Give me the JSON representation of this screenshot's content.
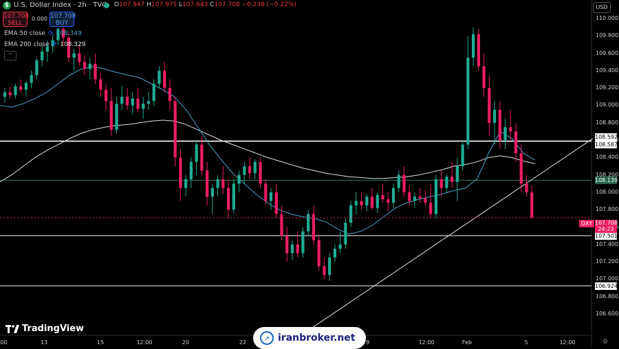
{
  "header": {
    "symbol_title": "U.S. Dollar Index · 2h · TVC",
    "badge": "$",
    "ohlc": {
      "o_label": "O",
      "o": "107.947",
      "h_label": "H",
      "h": "107.975",
      "l_label": "L",
      "l": "107.643",
      "c_label": "C",
      "c": "107.708",
      "change": "−0.238 (−0.22%)"
    }
  },
  "trade": {
    "sell_price": "107.708",
    "sell_label": "SELL",
    "spread": "0.000",
    "buy_price": "107.708",
    "buy_label": "BUY"
  },
  "indicators": [
    {
      "name": "EMA 50 close",
      "value": "108.349",
      "color": "#4aa3c9"
    },
    {
      "name": "EMA 200 close",
      "value": "108.329",
      "color": "#e0e0e0"
    }
  ],
  "currency_button": "USD",
  "watermark_text": "iranbroker.net",
  "brand": "TradingView",
  "current": {
    "ticker": "DXY",
    "price": "107.708",
    "countdown": "24:23"
  },
  "colors": {
    "up": "#22ab94",
    "down": "#e91e63",
    "ema50": "#4aa3c9",
    "ema200": "#e0e0e0",
    "level": "#ffffff",
    "level_green": "#2e7d5b",
    "bg": "#000000"
  },
  "chart_data": {
    "type": "candlestick",
    "title": "U.S. Dollar Index · 2h · TVC",
    "ylim": [
      106.5,
      110.15
    ],
    "y_ticks": [
      "110.000",
      "109.800",
      "109.600",
      "109.400",
      "109.200",
      "109.000",
      "108.800",
      "108.600",
      "108.400",
      "108.200",
      "108.000",
      "107.800",
      "107.600",
      "107.400",
      "107.200",
      "107.000",
      "106.800",
      "106.600"
    ],
    "x_ticks": [
      ":00",
      "13",
      "15",
      "12:00",
      "20",
      "22",
      "29",
      "12:00",
      "Feb",
      "5",
      "12:00"
    ],
    "levels": [
      {
        "value": 108.592,
        "label": "108.592",
        "style": "white"
      },
      {
        "value": 108.587,
        "label": "108.587",
        "style": "white"
      },
      {
        "value": 108.139,
        "label": "108.139",
        "style": "green"
      },
      {
        "value": 107.501,
        "label": "107.501",
        "style": "white"
      },
      {
        "value": 106.924,
        "label": "106.924",
        "style": "white"
      }
    ],
    "trendline": {
      "from": {
        "bar": 0.47,
        "price": 106.55
      },
      "to": {
        "bar": 0.97,
        "price": 108.62
      }
    },
    "candles": [
      [
        109.1,
        109.2,
        109.03,
        109.15
      ],
      [
        109.15,
        109.22,
        109.09,
        109.12
      ],
      [
        109.12,
        109.25,
        109.08,
        109.22
      ],
      [
        109.22,
        109.3,
        109.15,
        109.18
      ],
      [
        109.18,
        109.28,
        109.1,
        109.26
      ],
      [
        109.26,
        109.4,
        109.2,
        109.35
      ],
      [
        109.35,
        109.55,
        109.3,
        109.52
      ],
      [
        109.52,
        109.7,
        109.45,
        109.62
      ],
      [
        109.62,
        109.75,
        109.5,
        109.68
      ],
      [
        109.68,
        109.82,
        109.6,
        109.75
      ],
      [
        109.75,
        109.9,
        109.7,
        109.88
      ],
      [
        109.88,
        109.95,
        109.7,
        109.78
      ],
      [
        109.78,
        109.85,
        109.5,
        109.55
      ],
      [
        109.55,
        109.65,
        109.4,
        109.6
      ],
      [
        109.6,
        109.7,
        109.45,
        109.5
      ],
      [
        109.5,
        109.58,
        109.35,
        109.42
      ],
      [
        109.42,
        109.55,
        109.3,
        109.48
      ],
      [
        109.48,
        109.6,
        109.25,
        109.3
      ],
      [
        109.3,
        109.38,
        109.1,
        109.18
      ],
      [
        109.18,
        109.25,
        108.95,
        109.05
      ],
      [
        109.05,
        109.2,
        108.65,
        108.72
      ],
      [
        108.72,
        109.1,
        108.68,
        109.02
      ],
      [
        109.02,
        109.22,
        108.95,
        109.1
      ],
      [
        109.1,
        109.2,
        108.95,
        109.0
      ],
      [
        109.0,
        109.15,
        108.9,
        109.08
      ],
      [
        109.08,
        109.2,
        108.92,
        108.96
      ],
      [
        108.96,
        109.1,
        108.85,
        109.02
      ],
      [
        109.02,
        109.15,
        108.95,
        109.05
      ],
      [
        109.05,
        109.3,
        109.0,
        109.25
      ],
      [
        109.25,
        109.45,
        109.2,
        109.4
      ],
      [
        109.4,
        109.5,
        109.15,
        109.2
      ],
      [
        109.2,
        109.3,
        108.95,
        109.05
      ],
      [
        109.05,
        109.1,
        108.3,
        108.4
      ],
      [
        108.4,
        108.5,
        107.9,
        108.05
      ],
      [
        108.05,
        108.2,
        107.95,
        108.15
      ],
      [
        108.15,
        108.4,
        108.05,
        108.35
      ],
      [
        108.35,
        108.6,
        108.2,
        108.55
      ],
      [
        108.55,
        108.65,
        108.2,
        108.25
      ],
      [
        108.25,
        108.35,
        107.85,
        107.95
      ],
      [
        107.95,
        108.1,
        107.75,
        108.05
      ],
      [
        108.05,
        108.2,
        107.95,
        108.15
      ],
      [
        108.15,
        108.3,
        107.98,
        108.05
      ],
      [
        108.05,
        108.15,
        107.7,
        107.8
      ],
      [
        107.8,
        108.15,
        107.75,
        108.1
      ],
      [
        108.1,
        108.25,
        108.0,
        108.2
      ],
      [
        108.2,
        108.35,
        108.1,
        108.3
      ],
      [
        108.3,
        108.4,
        108.15,
        108.22
      ],
      [
        108.22,
        108.38,
        108.15,
        108.35
      ],
      [
        108.35,
        108.4,
        108.05,
        108.1
      ],
      [
        108.1,
        108.15,
        107.85,
        107.9
      ],
      [
        107.9,
        108.05,
        107.8,
        108.0
      ],
      [
        108.0,
        108.1,
        107.7,
        107.75
      ],
      [
        107.75,
        107.85,
        107.45,
        107.5
      ],
      [
        107.5,
        107.6,
        107.2,
        107.3
      ],
      [
        107.3,
        107.45,
        107.22,
        107.4
      ],
      [
        107.4,
        107.55,
        107.25,
        107.3
      ],
      [
        107.3,
        107.6,
        107.25,
        107.55
      ],
      [
        107.55,
        107.8,
        107.5,
        107.75
      ],
      [
        107.75,
        107.85,
        107.4,
        107.45
      ],
      [
        107.45,
        107.5,
        107.1,
        107.15
      ],
      [
        107.15,
        107.25,
        107.0,
        107.05
      ],
      [
        107.05,
        107.3,
        106.98,
        107.25
      ],
      [
        107.25,
        107.4,
        107.2,
        107.35
      ],
      [
        107.35,
        107.55,
        107.3,
        107.4
      ],
      [
        107.4,
        107.7,
        107.35,
        107.65
      ],
      [
        107.65,
        107.9,
        107.6,
        107.85
      ],
      [
        107.85,
        108.0,
        107.75,
        107.9
      ],
      [
        107.9,
        108.0,
        107.8,
        107.85
      ],
      [
        107.85,
        107.98,
        107.78,
        107.95
      ],
      [
        107.95,
        108.05,
        107.8,
        107.82
      ],
      [
        107.82,
        108.0,
        107.76,
        107.97
      ],
      [
        107.97,
        108.1,
        107.88,
        107.92
      ],
      [
        107.92,
        108.0,
        107.78,
        107.88
      ],
      [
        107.88,
        108.1,
        107.82,
        108.05
      ],
      [
        108.05,
        108.25,
        108.0,
        108.2
      ],
      [
        108.2,
        108.3,
        107.95,
        108.0
      ],
      [
        108.0,
        108.08,
        107.85,
        107.9
      ],
      [
        107.9,
        108.0,
        107.82,
        107.95
      ],
      [
        107.95,
        108.05,
        107.88,
        107.93
      ],
      [
        107.93,
        108.02,
        107.85,
        107.88
      ],
      [
        107.88,
        108.1,
        107.7,
        107.75
      ],
      [
        107.75,
        108.2,
        107.7,
        108.15
      ],
      [
        108.15,
        108.25,
        107.95,
        108.05
      ],
      [
        108.05,
        108.2,
        108.0,
        108.18
      ],
      [
        108.18,
        108.35,
        108.05,
        108.12
      ],
      [
        108.12,
        108.4,
        107.9,
        108.3
      ],
      [
        108.3,
        108.6,
        108.25,
        108.55
      ],
      [
        108.55,
        109.8,
        108.5,
        109.55
      ],
      [
        109.55,
        109.9,
        109.45,
        109.82
      ],
      [
        109.82,
        109.88,
        109.4,
        109.45
      ],
      [
        109.45,
        109.6,
        109.1,
        109.2
      ],
      [
        109.2,
        109.35,
        108.65,
        108.8
      ],
      [
        108.8,
        109.05,
        108.55,
        108.95
      ],
      [
        108.95,
        109.05,
        108.5,
        108.6
      ],
      [
        108.6,
        108.85,
        108.5,
        108.75
      ],
      [
        108.75,
        108.95,
        108.6,
        108.7
      ],
      [
        108.7,
        108.8,
        108.35,
        108.45
      ],
      [
        108.45,
        108.55,
        108.0,
        108.1
      ],
      [
        108.1,
        108.2,
        107.95,
        108.0
      ],
      [
        108.0,
        108.08,
        107.7,
        107.71
      ]
    ],
    "ema50": [
      109.0,
      108.98,
      109.02,
      109.08,
      109.15,
      109.25,
      109.35,
      109.42,
      109.45,
      109.42,
      109.38,
      109.35,
      109.32,
      109.25,
      109.18,
      109.1,
      108.95,
      108.75,
      108.55,
      108.38,
      108.22,
      108.1,
      107.98,
      107.88,
      107.8,
      107.75,
      107.72,
      107.7,
      107.66,
      107.58,
      107.52,
      107.55,
      107.62,
      107.72,
      107.82,
      107.88,
      107.92,
      107.95,
      107.98,
      108.02,
      108.05,
      108.15,
      108.45,
      108.7,
      108.62,
      108.45,
      108.37
    ],
    "ema200": [
      108.12,
      108.2,
      108.3,
      108.4,
      108.48,
      108.55,
      108.62,
      108.68,
      108.72,
      108.75,
      108.77,
      108.78,
      108.8,
      108.82,
      108.83,
      108.82,
      108.78,
      108.72,
      108.66,
      108.6,
      108.55,
      108.5,
      108.45,
      108.4,
      108.36,
      108.32,
      108.28,
      108.25,
      108.22,
      108.2,
      108.18,
      108.17,
      108.16,
      108.16,
      108.17,
      108.18,
      108.2,
      108.23,
      108.26,
      108.3,
      108.32,
      108.35,
      108.4,
      108.42,
      108.4,
      108.36,
      108.33
    ]
  }
}
